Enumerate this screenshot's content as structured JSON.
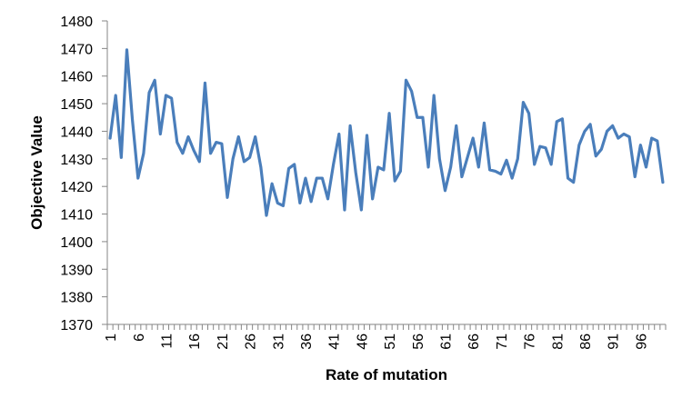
{
  "chart_data": {
    "type": "line",
    "title": "",
    "xlabel": "Rate of mutation",
    "ylabel": "Objective Value",
    "ylim": [
      1370,
      1480
    ],
    "yticks": [
      1370,
      1380,
      1390,
      1400,
      1410,
      1420,
      1430,
      1440,
      1450,
      1460,
      1470,
      1480
    ],
    "xticks": [
      "1",
      "6",
      "11",
      "16",
      "21",
      "26",
      "31",
      "36",
      "41",
      "46",
      "51",
      "56",
      "61",
      "66",
      "71",
      "76",
      "81",
      "86",
      "91",
      "96"
    ],
    "grid": false,
    "legend": "none",
    "line_color": "#4a7ebb",
    "series": [
      {
        "values": [
          1437.5,
          1453,
          1430.5,
          1469.5,
          1444,
          1423,
          1432,
          1454,
          1458.5,
          1439,
          1453,
          1452,
          1436,
          1432,
          1438,
          1433,
          1429,
          1457.5,
          1432,
          1436,
          1435.5,
          1416,
          1430,
          1438,
          1429,
          1430.5,
          1438,
          1427,
          1409.5,
          1421,
          1414,
          1413,
          1426.5,
          1428,
          1414,
          1423,
          1414.5,
          1423,
          1423,
          1415.5,
          1428,
          1439,
          1411.5,
          1442,
          1425,
          1411.5,
          1438.5,
          1415.5,
          1427,
          1426,
          1446.5,
          1422,
          1425.5,
          1458.5,
          1454.5,
          1445,
          1445,
          1427,
          1453,
          1430,
          1418.5,
          1427,
          1442,
          1423.5,
          1430.5,
          1437.5,
          1427,
          1443,
          1426,
          1425.5,
          1424.5,
          1429.5,
          1423,
          1430,
          1450.5,
          1446.5,
          1428,
          1434.5,
          1434,
          1428,
          1443.5,
          1444.5,
          1423,
          1421.5,
          1435,
          1440,
          1442.5,
          1431,
          1433.5,
          1440,
          1442,
          1437.5,
          1439,
          1438,
          1423.5,
          1435,
          1427,
          1437.5,
          1436.5,
          1421.5
        ]
      }
    ]
  }
}
